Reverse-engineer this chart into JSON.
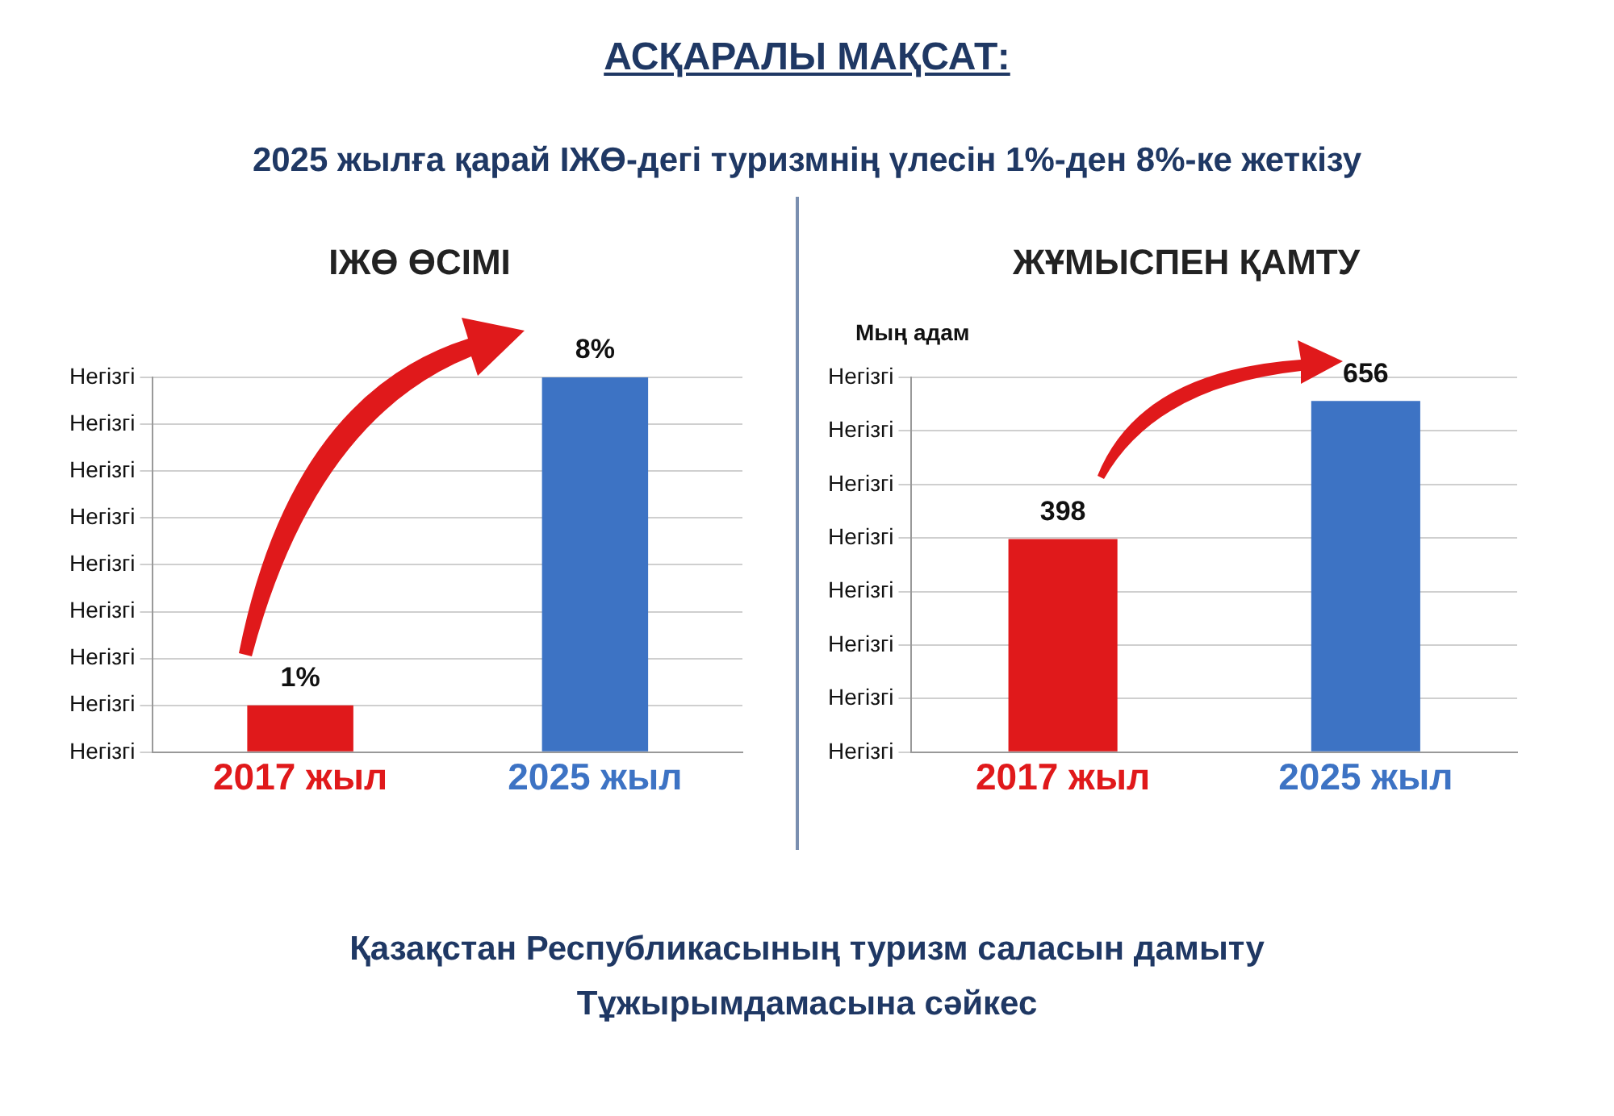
{
  "chart_data": [
    {
      "type": "other",
      "title": "АСҚАРАЛЫ МАҚСАТ:",
      "subtitle": "2025 жылға қарай ІЖӨ-дегі туризмнің үлесін 1%-ден 8%-ке жеткізу",
      "annotations": [
        "Қазақстан Республикасының туризм саласын дамыту Тұжырымдамасына сәйкес"
      ]
    },
    {
      "type": "bar",
      "title": "ІЖӨ ӨСІМІ",
      "categories": [
        "2017 жыл",
        "2025 жыл"
      ],
      "values": [
        1,
        8
      ],
      "colors": [
        "#e0191b",
        "#3d73c4"
      ],
      "value_labels": [
        "1%",
        "8%"
      ],
      "grid": "y",
      "annotations": [
        "Негізгі",
        "Негізгі",
        "Негізгі",
        "Негізгі",
        "Негізгі",
        "Негізгі",
        "Негізгі",
        "Негізгі",
        "Негізгі"
      ]
    },
    {
      "type": "bar",
      "title": "ЖҰМЫСПЕН ҚАМТУ",
      "ylabel": "Мың адам",
      "categories": [
        "2017 жыл",
        "2025 жыл"
      ],
      "values": [
        398,
        656
      ],
      "colors": [
        "#e0191b",
        "#3d73c4"
      ],
      "data_labels": true,
      "grid": "y",
      "annotations": [
        "Негізгі",
        "Негізгі",
        "Негізгі",
        "Негізгі",
        "Негізгі",
        "Негізгі",
        "Негізгі",
        "Негізгі"
      ]
    }
  ]
}
